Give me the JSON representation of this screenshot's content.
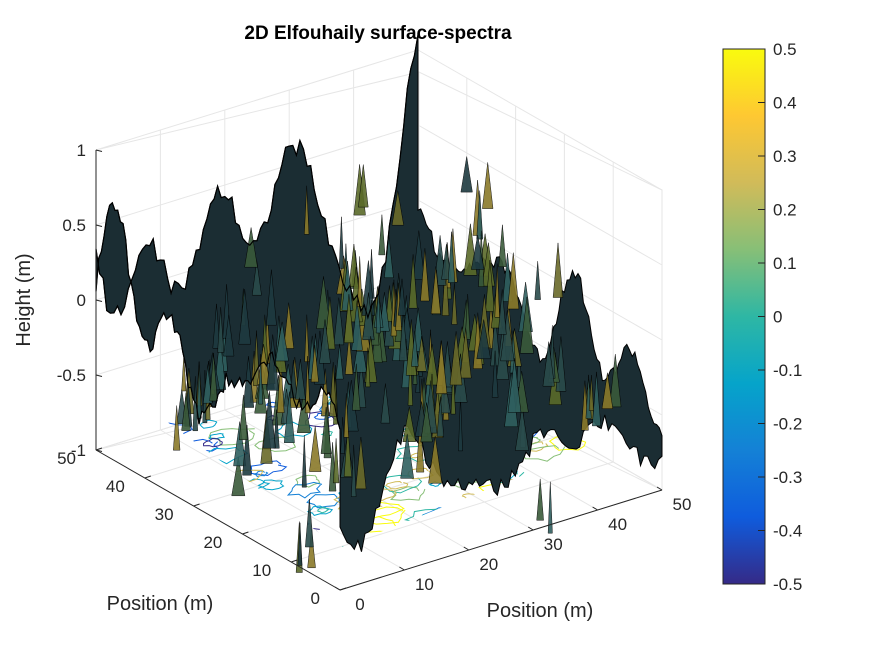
{
  "chart_data": {
    "type": "surface",
    "title": "2D Elfouhaily surface-spectra",
    "xlabel": "Position (m)",
    "ylabel": "Position (m)",
    "zlabel": "Height (m)",
    "xlim": [
      0,
      50
    ],
    "ylim": [
      0,
      50
    ],
    "zlim": [
      -1,
      1
    ],
    "x_ticks": [
      "0",
      "10",
      "20",
      "30",
      "40",
      "50"
    ],
    "y_ticks": [
      "0",
      "10",
      "20",
      "30",
      "40",
      "50"
    ],
    "z_ticks": [
      "-1",
      "-0.5",
      "0",
      "0.5",
      "1"
    ],
    "grid": true,
    "contour_projection": true,
    "colormap": "parula",
    "colorbar": {
      "limits": [
        -0.5,
        0.5
      ],
      "ticks": [
        "-0.5",
        "-0.4",
        "-0.3",
        "-0.2",
        "-0.1",
        "0",
        "0.1",
        "0.2",
        "0.3",
        "0.4",
        "0.5"
      ],
      "colors": [
        "#352a87",
        "#0f5cdd",
        "#1481d6",
        "#06a4ca",
        "#2eb7a4",
        "#87bf77",
        "#d1bb59",
        "#fec832",
        "#f9fb0e"
      ]
    },
    "surface_range": [
      -0.5,
      0.5
    ],
    "surface_edge_color": "#000000"
  }
}
